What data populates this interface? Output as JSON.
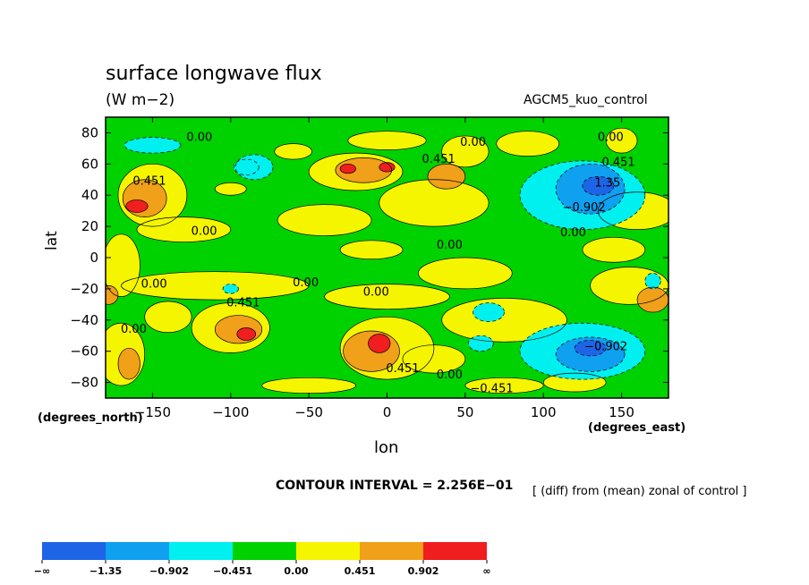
{
  "chart_data": {
    "type": "heatmap",
    "subtype": "filled-contour map",
    "title": "surface longwave flux",
    "units": "(W m−2)",
    "dataset": "AGCM5_kuo_control",
    "xlabel": "lon",
    "ylabel": "lat",
    "x_unit": "(degrees_east)",
    "y_unit": "(degrees_north)",
    "xlim": [
      -180,
      180
    ],
    "ylim": [
      -90,
      90
    ],
    "x_ticks": [
      -150,
      -100,
      -50,
      0,
      50,
      100,
      150
    ],
    "x_tick_labels": [
      "−150",
      "−100",
      "−50",
      "0",
      "50",
      "100",
      "150"
    ],
    "y_ticks": [
      80,
      60,
      40,
      20,
      0,
      -20,
      -40,
      -60,
      -80
    ],
    "y_tick_labels": [
      "80",
      "60",
      "40",
      "20",
      "0",
      "−20",
      "−40",
      "−60",
      "−80"
    ],
    "contour_interval": "CONTOUR INTERVAL = 2.256E−01",
    "note": "[ (diff) from (mean) zonal of control ]",
    "levels": [
      "−∞",
      "−1.35",
      "−0.902",
      "−0.451",
      "0.00",
      "0.451",
      "0.902",
      "∞"
    ],
    "colorbar_colors": [
      "#1e64e6",
      "#0fa0f0",
      "#00f0f0",
      "#00d200",
      "#f5f500",
      "#f0a019",
      "#f01e1e"
    ],
    "grid": false,
    "contour_labels": [
      {
        "lon": -120,
        "lat": 77,
        "text": "0.00"
      },
      {
        "lon": 55,
        "lat": 74,
        "text": "0.00"
      },
      {
        "lon": 143,
        "lat": 77,
        "text": "0.00"
      },
      {
        "lon": -152,
        "lat": 49,
        "text": "0.451"
      },
      {
        "lon": 33,
        "lat": 63,
        "text": "0.451"
      },
      {
        "lon": 148,
        "lat": 61,
        "text": "0.451"
      },
      {
        "lon": 141,
        "lat": 48,
        "text": "1.35"
      },
      {
        "lon": 126,
        "lat": 32,
        "text": "−0.902"
      },
      {
        "lon": 119,
        "lat": 16,
        "text": "0.00"
      },
      {
        "lon": -117,
        "lat": 17,
        "text": "0.00"
      },
      {
        "lon": 40,
        "lat": 8,
        "text": "0.00"
      },
      {
        "lon": -149,
        "lat": -17,
        "text": "0.00"
      },
      {
        "lon": -52,
        "lat": -16,
        "text": "0.00"
      },
      {
        "lon": -7,
        "lat": -22,
        "text": "0.00"
      },
      {
        "lon": -92,
        "lat": -29,
        "text": "0.451"
      },
      {
        "lon": -162,
        "lat": -46,
        "text": "0.00"
      },
      {
        "lon": 10,
        "lat": -71,
        "text": "0.451"
      },
      {
        "lon": 40,
        "lat": -75,
        "text": "0.00"
      },
      {
        "lon": 67,
        "lat": -84,
        "text": "−0.451"
      },
      {
        "lon": 140,
        "lat": -57,
        "text": "−0.902"
      }
    ]
  }
}
